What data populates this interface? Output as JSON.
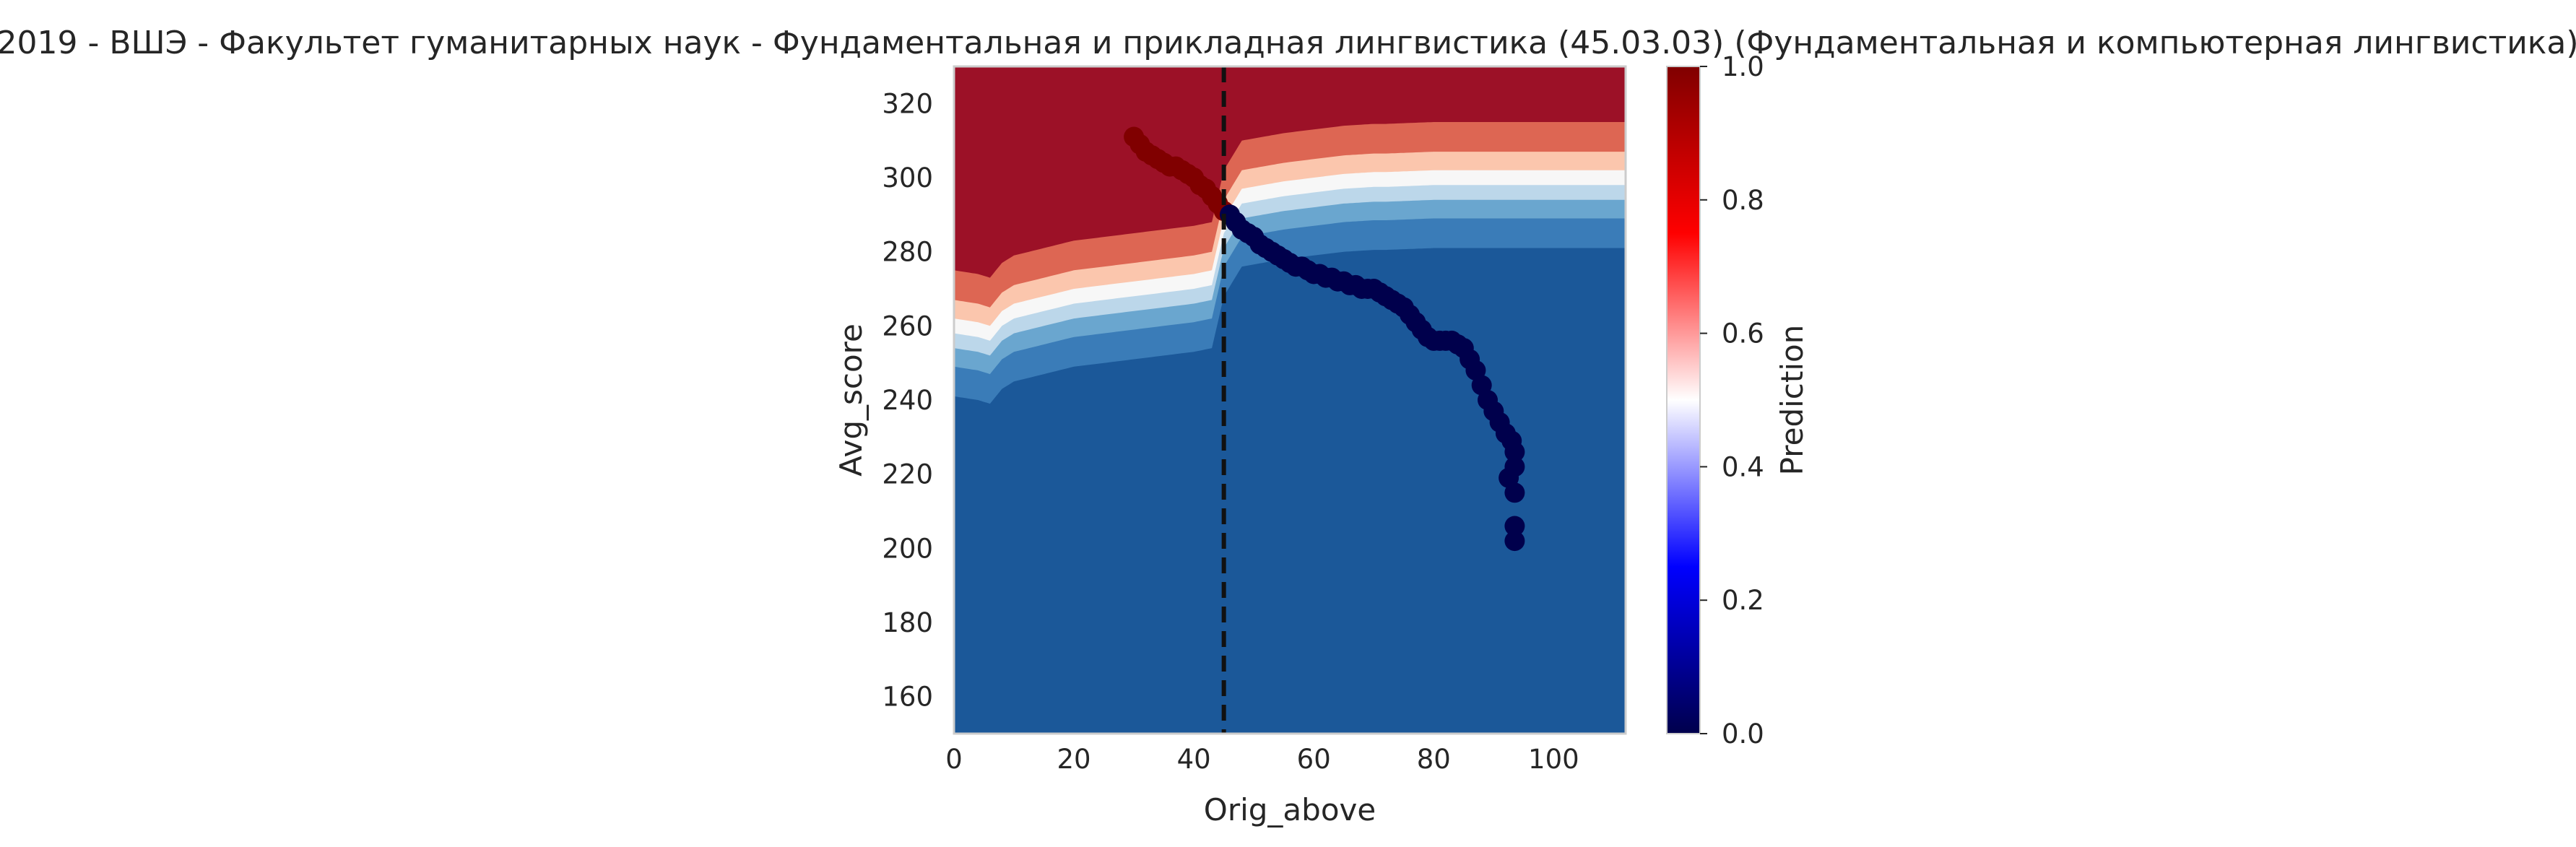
{
  "chart_data": {
    "type": "heatmap",
    "title": "2019 - ВШЭ - Факультет гуманитарных наук - Фундаментальная и прикладная лингвистика (45.03.03) (Фундаментальная и компьютерная лингвистика)",
    "xlabel": "Orig_above",
    "ylabel": "Avg_score",
    "xlim": [
      0,
      112
    ],
    "ylim": [
      150,
      330
    ],
    "x_ticks": [
      "0",
      "20",
      "40",
      "60",
      "80",
      "100"
    ],
    "y_ticks": [
      "160",
      "180",
      "200",
      "220",
      "240",
      "260",
      "280",
      "300",
      "320"
    ],
    "grid": false,
    "threshold_line": {
      "x": 45,
      "style": "dashed",
      "color": "#111111"
    },
    "colorbar": {
      "label": "Prediction",
      "range": [
        0.0,
        1.0
      ],
      "ticks": [
        "0.0",
        "0.2",
        "0.4",
        "0.6",
        "0.8",
        "1.0"
      ],
      "colormap": "seismic",
      "colors": [
        "#00004c",
        "#0000ff",
        "#ffffff",
        "#ff0000",
        "#800000"
      ]
    },
    "decision_boundary": [
      [
        0,
        258
      ],
      [
        4,
        257
      ],
      [
        6,
        256
      ],
      [
        8,
        260
      ],
      [
        10,
        262
      ],
      [
        15,
        264
      ],
      [
        20,
        266
      ],
      [
        25,
        267
      ],
      [
        30,
        268
      ],
      [
        35,
        269
      ],
      [
        40,
        270
      ],
      [
        43,
        271
      ],
      [
        45,
        285
      ],
      [
        48,
        293
      ],
      [
        55,
        295
      ],
      [
        60,
        296
      ],
      [
        65,
        297
      ],
      [
        70,
        297.5
      ],
      [
        72,
        297.5
      ],
      [
        80,
        298
      ],
      [
        90,
        298
      ],
      [
        100,
        298
      ],
      [
        112,
        298
      ]
    ],
    "series": [
      {
        "label_value": 1,
        "color": "#800000",
        "points": [
          [
            30,
            311
          ],
          [
            31,
            309
          ],
          [
            32,
            307
          ],
          [
            33,
            306
          ],
          [
            34,
            305
          ],
          [
            35,
            304
          ],
          [
            36,
            303
          ],
          [
            37,
            303
          ],
          [
            38,
            302
          ],
          [
            39,
            301
          ],
          [
            40,
            300
          ],
          [
            41,
            298
          ],
          [
            42,
            297
          ],
          [
            43,
            295
          ],
          [
            44,
            293
          ],
          [
            45,
            291
          ]
        ]
      },
      {
        "label_value": 0,
        "color": "#00004c",
        "points": [
          [
            46,
            290
          ],
          [
            47,
            288
          ],
          [
            48,
            286
          ],
          [
            49,
            285
          ],
          [
            50,
            284
          ],
          [
            51,
            282
          ],
          [
            52,
            281
          ],
          [
            53,
            280
          ],
          [
            54,
            279
          ],
          [
            55,
            278
          ],
          [
            56,
            277
          ],
          [
            57,
            276
          ],
          [
            58,
            276
          ],
          [
            59,
            275
          ],
          [
            60,
            274
          ],
          [
            61,
            274
          ],
          [
            62,
            273
          ],
          [
            63,
            273
          ],
          [
            64,
            272
          ],
          [
            65,
            272
          ],
          [
            66,
            271
          ],
          [
            67,
            271
          ],
          [
            68,
            270
          ],
          [
            69,
            270
          ],
          [
            70,
            270
          ],
          [
            71,
            269
          ],
          [
            72,
            268
          ],
          [
            73,
            267
          ],
          [
            74,
            266
          ],
          [
            75,
            265
          ],
          [
            76,
            263
          ],
          [
            77,
            261
          ],
          [
            78,
            259
          ],
          [
            79,
            257
          ],
          [
            80,
            256
          ],
          [
            81,
            256
          ],
          [
            82,
            256
          ],
          [
            83,
            256
          ],
          [
            84,
            255
          ],
          [
            85,
            254
          ],
          [
            86,
            251
          ],
          [
            87,
            248
          ],
          [
            88,
            244
          ],
          [
            89,
            240
          ],
          [
            90,
            237
          ],
          [
            91,
            234
          ],
          [
            92,
            231
          ],
          [
            93,
            229
          ],
          [
            93.5,
            226
          ],
          [
            93.5,
            222
          ],
          [
            92.5,
            219
          ],
          [
            93.5,
            215
          ],
          [
            93.5,
            206
          ],
          [
            93.5,
            202
          ]
        ]
      }
    ]
  }
}
